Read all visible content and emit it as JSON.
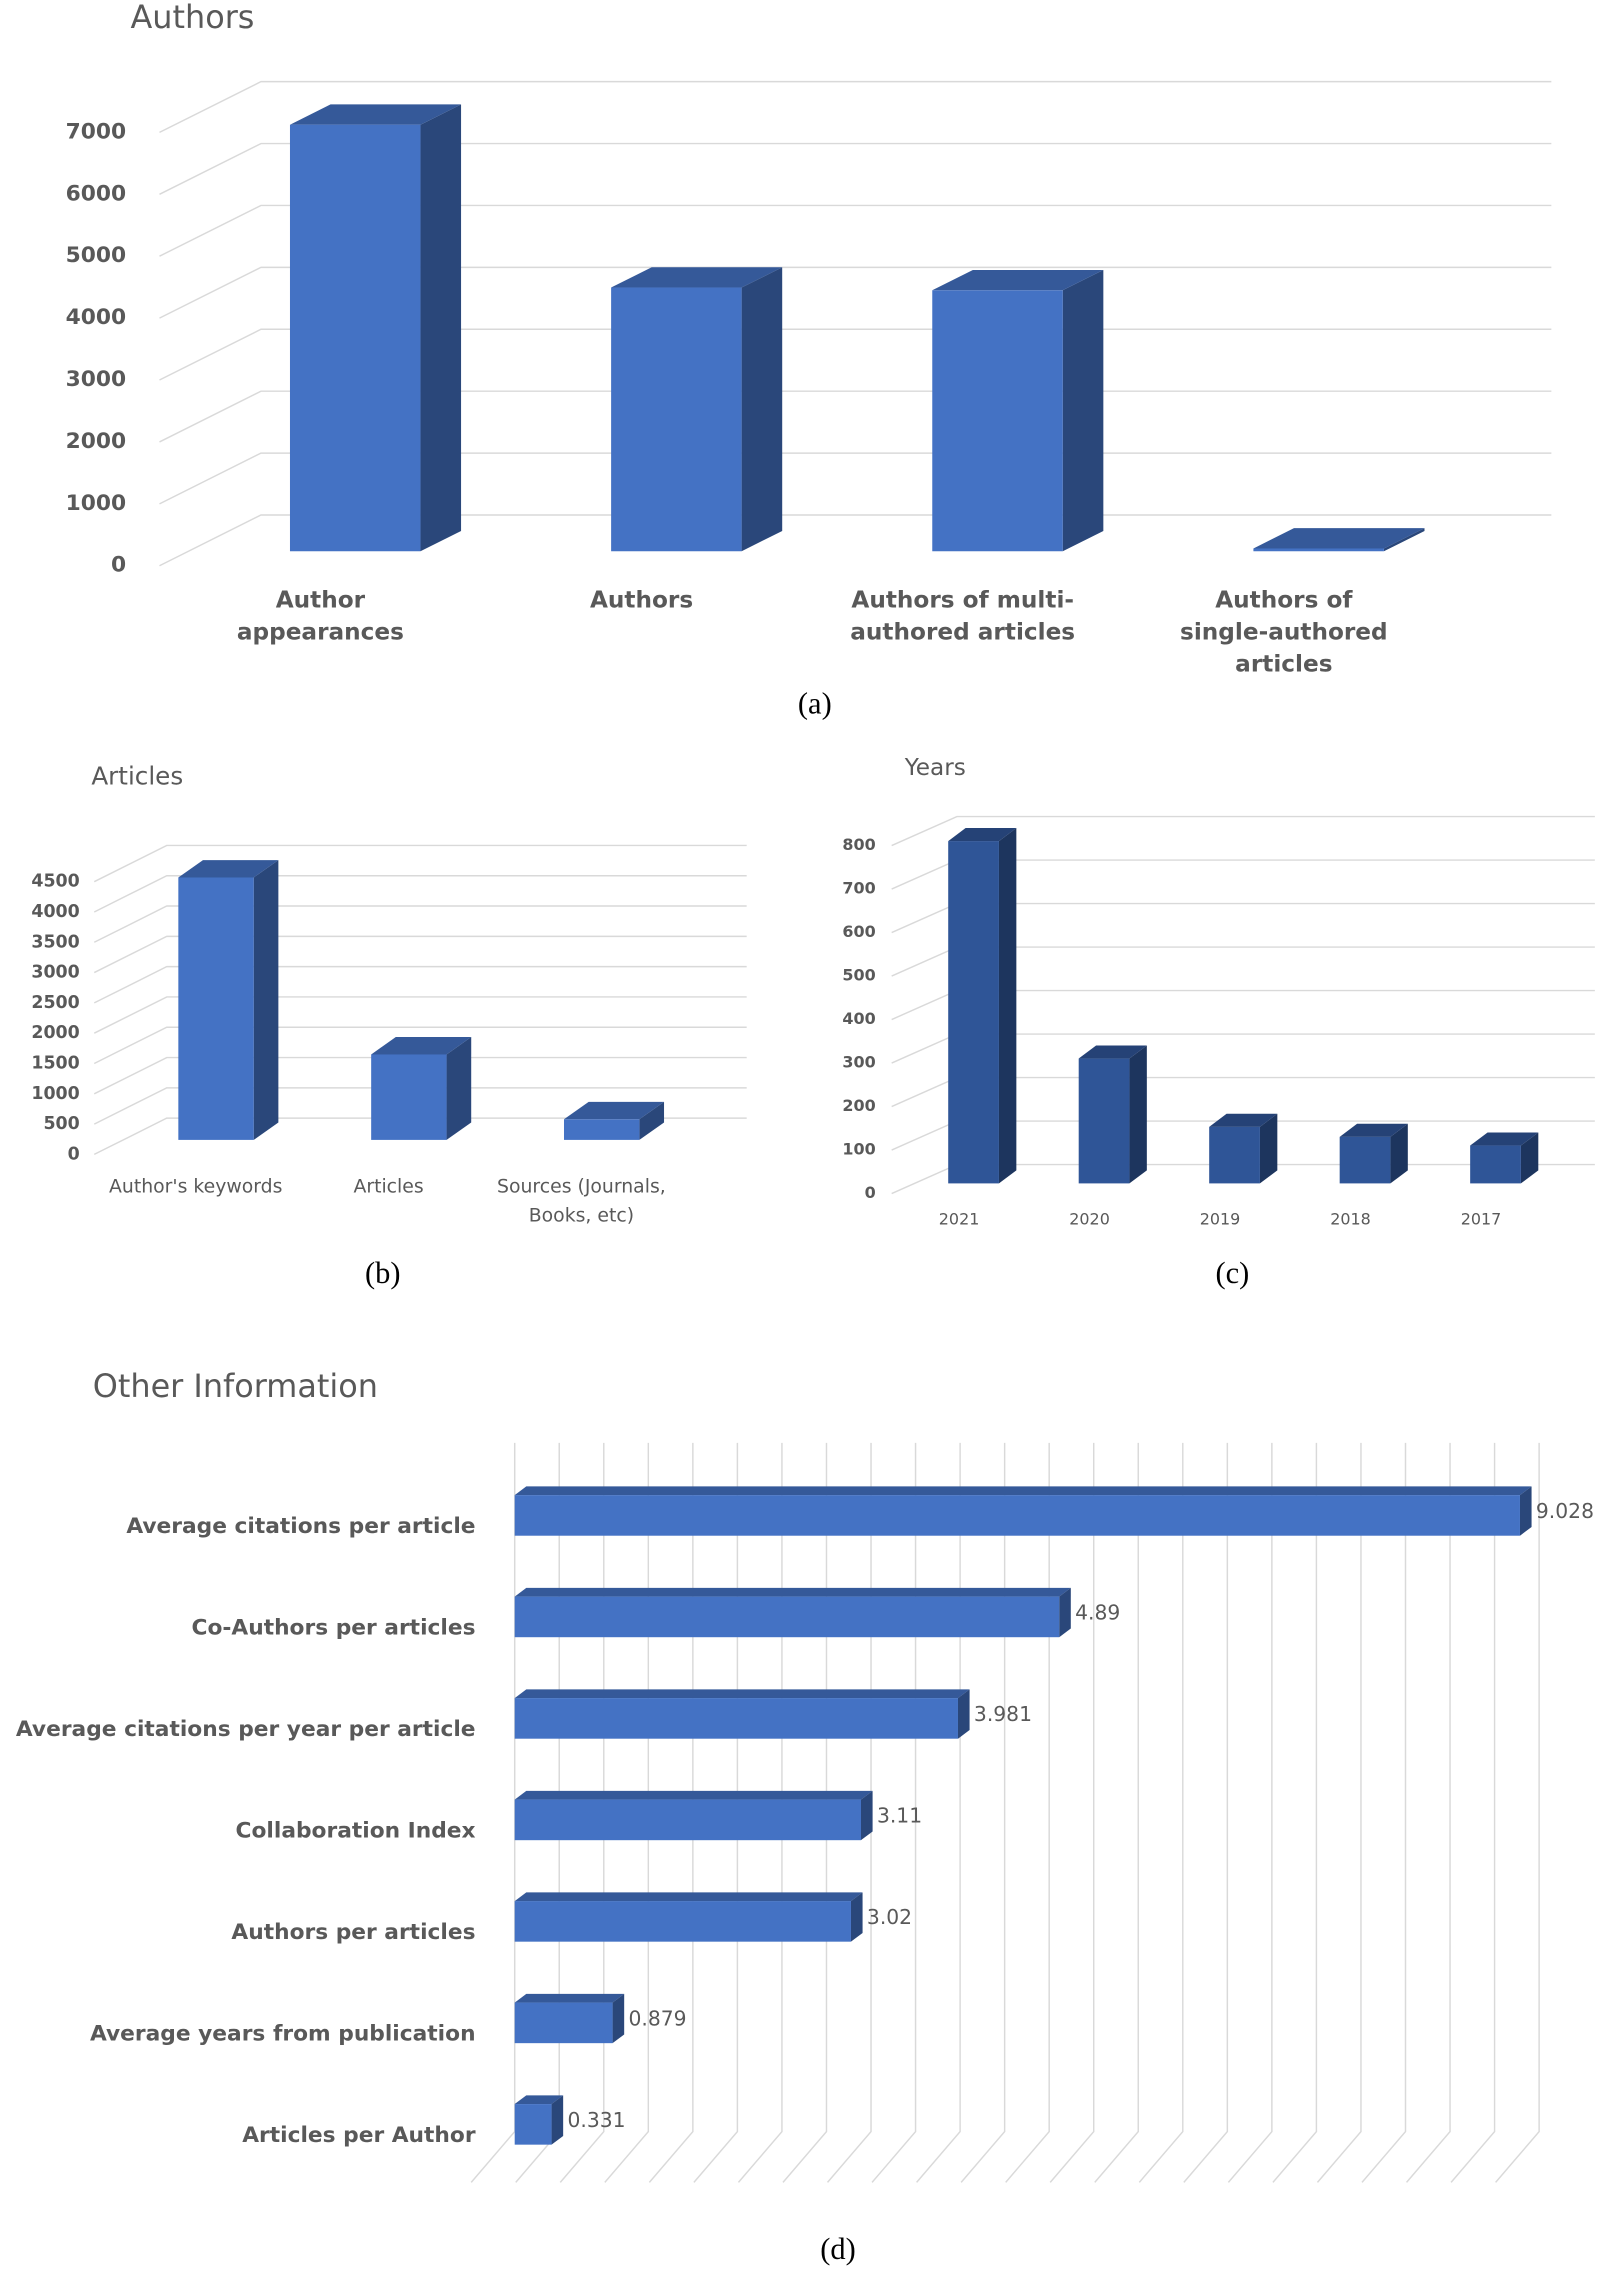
{
  "chart_data": [
    {
      "type": "bar",
      "title": "Authors",
      "caption": "(a)",
      "categories": [
        "Author appearances",
        "Authors",
        "Authors of multi-authored articles",
        "Authors of single-authored articles"
      ],
      "values": [
        6890,
        4260,
        4215,
        45
      ],
      "color": "#4472c4",
      "ylim": [
        0,
        7000
      ],
      "yticks": [
        0,
        1000,
        2000,
        3000,
        4000,
        5000,
        6000,
        7000
      ],
      "grid": true
    },
    {
      "type": "bar",
      "title": "Articles",
      "caption": "(b)",
      "categories": [
        "Author's keywords",
        "Articles",
        "Sources (Journals, Books, etc)"
      ],
      "values": [
        4330,
        1410,
        340
      ],
      "color": "#4472c4",
      "ylim": [
        0,
        4500
      ],
      "yticks": [
        0,
        500,
        1000,
        1500,
        2000,
        2500,
        3000,
        3500,
        4000,
        4500
      ],
      "grid": true
    },
    {
      "type": "bar",
      "title": "Years",
      "caption": "(c)",
      "categories": [
        "2021",
        "2020",
        "2019",
        "2018",
        "2017"
      ],
      "values": [
        787,
        287,
        130,
        107,
        87
      ],
      "color": "#2f5597",
      "ylim": [
        0,
        800
      ],
      "yticks": [
        0,
        100,
        200,
        300,
        400,
        500,
        600,
        700,
        800
      ],
      "grid": true
    },
    {
      "type": "hbar",
      "title": "Other Information",
      "caption": "(d)",
      "categories": [
        "Average citations per article",
        "Co-Authors per articles",
        "Average citations per year per article",
        "Collaboration Index",
        "Authors per articles",
        "Average years from publication",
        "Articles per Author"
      ],
      "values": [
        9.028,
        4.89,
        3.981,
        3.11,
        3.02,
        0.879,
        0.331
      ],
      "color": "#4472c4",
      "xlim": [
        0,
        9.2
      ],
      "xticks": [
        0,
        0.4,
        0.8,
        1.2,
        1.6,
        2,
        2.4,
        2.8,
        3.2,
        3.6,
        4,
        4.4,
        4.8,
        5.2,
        5.6,
        6,
        6.4,
        6.8,
        7.2,
        7.6,
        8,
        8.4,
        8.8,
        9.2
      ],
      "grid": true
    }
  ]
}
